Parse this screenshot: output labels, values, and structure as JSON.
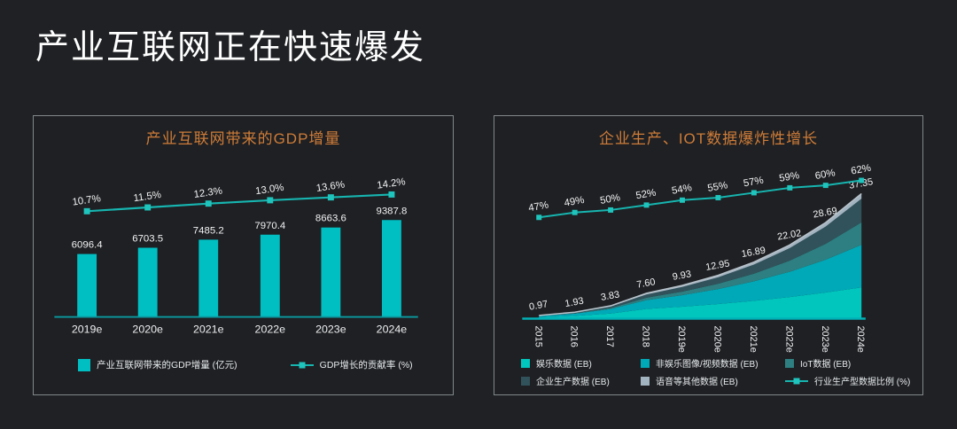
{
  "page": {
    "title": "产业互联网正在快速爆发",
    "background_color": "#1f2124",
    "text_color": "#eef0f2",
    "accent_title_color": "#cf7c38"
  },
  "chart_data": [
    {
      "type": "bar",
      "title": "产业互联网带来的GDP增量",
      "categories": [
        "2019e",
        "2020e",
        "2021e",
        "2022e",
        "2023e",
        "2024e"
      ],
      "series": [
        {
          "kind": "bar",
          "name": "产业互联网带来的GDP增量 (亿元)",
          "values": [
            6096.4,
            6703.5,
            7485.2,
            7970.4,
            8663.6,
            9387.8
          ],
          "labels": [
            "6096.4",
            "6703.5",
            "7485.2",
            "7970.4",
            "8663.6",
            "9387.8"
          ],
          "color": "#00bfc3"
        },
        {
          "kind": "line",
          "name": "GDP增长的贡献率 (%)",
          "values": [
            10.7,
            11.5,
            12.3,
            13.0,
            13.6,
            14.2
          ],
          "labels": [
            "10.7%",
            "11.5%",
            "12.3%",
            "13.0%",
            "13.6%",
            "14.2%"
          ],
          "color": "#17b5b0",
          "marker_color": "#1fc4bd"
        }
      ],
      "axis_color": "#0b9aa0",
      "label_color": "#f1f3f4",
      "legend_position": "bottom",
      "grid": false
    },
    {
      "type": "area",
      "title": "企业生产、IOT数据爆炸性增长",
      "categories": [
        "2015",
        "2016",
        "2017",
        "2018",
        "2019e",
        "2020e",
        "2021e",
        "2022e",
        "2023e",
        "2024e"
      ],
      "stack_totals": [
        0.97,
        1.93,
        3.83,
        7.6,
        9.93,
        12.95,
        16.89,
        22.02,
        28.69,
        37.35
      ],
      "stack_total_labels": [
        "0.97",
        "1.93",
        "3.83",
        "7.60",
        "9.93",
        "12.95",
        "16.89",
        "22.02",
        "28.69",
        "37.35"
      ],
      "series": [
        {
          "name": "娱乐数据 (EB)",
          "values": [
            0.44,
            0.83,
            1.55,
            2.91,
            3.59,
            4.39,
            5.35,
            6.48,
            7.81,
            9.34
          ],
          "color": "#00c6be"
        },
        {
          "name": "非娱乐图像/视频数据 (EB)",
          "values": [
            0.34,
            0.67,
            1.33,
            2.63,
            3.43,
            4.46,
            5.8,
            7.54,
            9.79,
            12.7
          ],
          "color": "#00a9b8"
        },
        {
          "name": "IoT数据 (EB)",
          "values": [
            0.05,
            0.12,
            0.3,
            0.71,
            1.07,
            1.58,
            2.31,
            3.33,
            4.75,
            6.72
          ],
          "color": "#2d7f81"
        },
        {
          "name": "企业生产数据 (EB)",
          "values": [
            0.1,
            0.23,
            0.46,
            0.99,
            1.39,
            1.94,
            2.7,
            3.74,
            5.16,
            7.1
          ],
          "color": "#31525b"
        },
        {
          "name": "语音等其他数据 (EB)",
          "values": [
            0.04,
            0.08,
            0.19,
            0.36,
            0.45,
            0.58,
            0.73,
            0.93,
            1.18,
            1.49
          ],
          "color": "#a3b4c1"
        }
      ],
      "line_series": {
        "name": "行业生产型数据比例 (%)",
        "values": [
          47,
          49,
          50,
          52,
          54,
          55,
          57,
          59,
          60,
          62
        ],
        "labels": [
          "47%",
          "49%",
          "50%",
          "52%",
          "54%",
          "55%",
          "57%",
          "59%",
          "60%",
          "62%"
        ],
        "color": "#17b5b0",
        "marker_color": "#1fc4bd"
      },
      "top_line_color": "#b7c2ca",
      "axis_color": "#00b0b5",
      "label_color": "#f1f3f4",
      "legend_position": "bottom",
      "grid": false
    }
  ]
}
